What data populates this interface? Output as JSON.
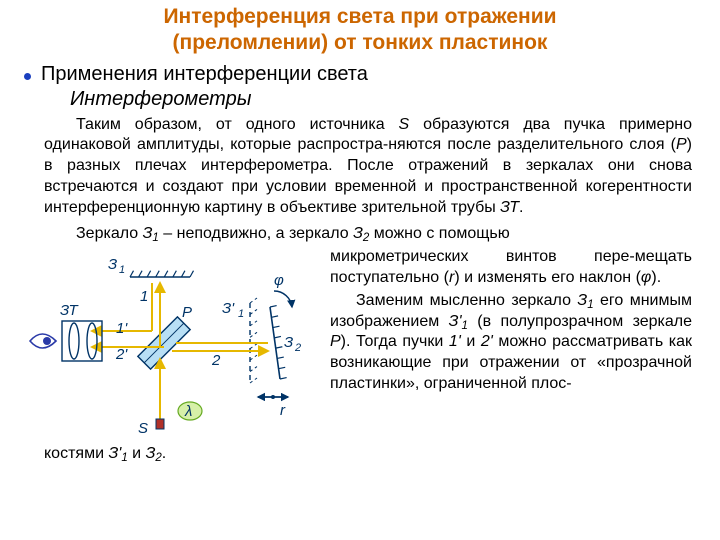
{
  "colors": {
    "title": "#cc6600",
    "bullet": "#1a3fbf",
    "body": "#111111",
    "diagram_stroke": "#003366",
    "ray": "#e6b800",
    "lambda_fill": "#d6f0a8",
    "lambda_stroke": "#66aa22",
    "beamsplitter_fill": "#b8dff5",
    "source_fill": "#b03028",
    "eye_fill": "#2a3aa8"
  },
  "title_line1": "Интерференция света при отражении",
  "title_line2": "(преломлении) от тонких пластинок",
  "title_fontsize": "21px",
  "app_line": "Применения интерференции света",
  "subhead": "Интерферометры",
  "para1_parts": {
    "a": "Таким образом, от одного источника ",
    "S": "S",
    "b": " образуются два пучка примерно одинаковой амплитуды, которые распростра-няются после разделительного слоя (",
    "P": "P",
    "c": ") в разных плечах интерферометра. После отражений в зеркалах они снова встречаются и создают при условии временной и пространственной когерентности интерференционную картину в объективе зрительной трубы ",
    "ZT": "ЗТ",
    "d": "."
  },
  "line2_parts": {
    "a": "Зеркало ",
    "Z1": "З",
    "s1": "1",
    "b": " – неподвижно, а зеркало ",
    "Z2": "З",
    "s2": "2",
    "c": "  можно  с  помощью"
  },
  "side1_parts": {
    "a": "микрометрических винтов пере-мещать поступательно (",
    "r": "r",
    "b": ") и изменять его наклон (",
    "phi": "φ",
    "c": ")."
  },
  "side2_parts": {
    "a": "Заменим мысленно зеркало ",
    "Z1": "З",
    "s1": "1",
    "b": " его мнимым изображением ",
    "Z1p": "З'",
    "s1p": "1",
    "c": " (в полупрозрачном зеркале ",
    "P": "P",
    "d": "). Тогда пучки ",
    "p1": "1'",
    "e": " и ",
    "p2": "2'",
    "f": " можно  рассматривать как возникающие при отражении от «прозрачной пластинки», ограниченной  плос-"
  },
  "last_parts": {
    "a": "костями ",
    "Z1p": "З'",
    "s1p": "1",
    "b": " и ",
    "Z2": "З",
    "s2": "2",
    "c": "."
  },
  "diagram_labels": {
    "Z1": "З",
    "s1": "1",
    "ZT": "ЗТ",
    "one": "1",
    "P": "P",
    "Z1p": "З'",
    "s1p": "1",
    "phi": "φ",
    "onep": "1'",
    "Z2": "З",
    "s2": "2",
    "twop": "2'",
    "two": "2",
    "r": "r",
    "S": "S",
    "lambda": "λ"
  }
}
